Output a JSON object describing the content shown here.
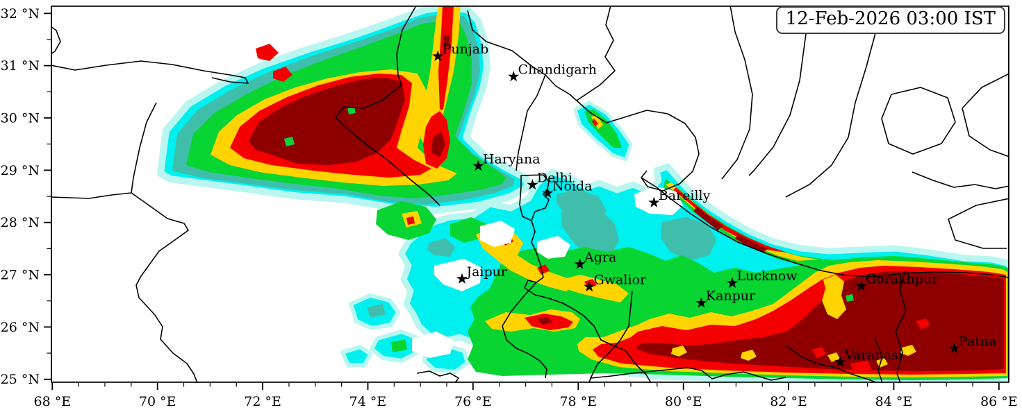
{
  "header": {
    "timestamp": "12-Feb-2026 03:00 IST"
  },
  "map": {
    "axes": {
      "lon_min": 67.97,
      "lon_max": 86.2,
      "lat_min": 24.93,
      "lat_max": 32.15,
      "minor_step": 0.5,
      "lon_major": [
        {
          "value": 68,
          "label": "68 °E"
        },
        {
          "value": 70,
          "label": "70 °E"
        },
        {
          "value": 72,
          "label": "72 °E"
        },
        {
          "value": 74,
          "label": "74 °E"
        },
        {
          "value": 76,
          "label": "76 °E"
        },
        {
          "value": 78,
          "label": "78 °E"
        },
        {
          "value": 80,
          "label": "80 °E"
        },
        {
          "value": 82,
          "label": "82 °E"
        },
        {
          "value": 84,
          "label": "84 °E"
        },
        {
          "value": 86,
          "label": "86 °E"
        }
      ],
      "lat_major": [
        {
          "value": 25,
          "label": "25 °N"
        },
        {
          "value": 26,
          "label": "26 °N"
        },
        {
          "value": 27,
          "label": "27 °N"
        },
        {
          "value": 28,
          "label": "28 °N"
        },
        {
          "value": 29,
          "label": "29 °N"
        },
        {
          "value": 30,
          "label": "30 °N"
        },
        {
          "value": 31,
          "label": "31 °N"
        },
        {
          "value": 32,
          "label": "32 °N"
        }
      ]
    },
    "cities": [
      {
        "name": "Punjab",
        "lon": 75.33,
        "lat": 31.18
      },
      {
        "name": "Chandigarh",
        "lon": 76.77,
        "lat": 30.79
      },
      {
        "name": "Haryana",
        "lon": 76.1,
        "lat": 29.08
      },
      {
        "name": "Delhi",
        "lon": 77.13,
        "lat": 28.72
      },
      {
        "name": "Noida",
        "lon": 77.42,
        "lat": 28.56
      },
      {
        "name": "Bareilly",
        "lon": 79.44,
        "lat": 28.38
      },
      {
        "name": "Agra",
        "lon": 78.03,
        "lat": 27.2
      },
      {
        "name": "Jaipur",
        "lon": 75.79,
        "lat": 26.92
      },
      {
        "name": "Gwalior",
        "lon": 78.21,
        "lat": 26.77
      },
      {
        "name": "Lucknow",
        "lon": 80.93,
        "lat": 26.84
      },
      {
        "name": "Kanpur",
        "lon": 80.34,
        "lat": 26.46
      },
      {
        "name": "Gorakhpur",
        "lon": 83.38,
        "lat": 26.78
      },
      {
        "name": "Patna",
        "lon": 85.15,
        "lat": 25.59
      },
      {
        "name": "Varanasi",
        "lon": 82.98,
        "lat": 25.33
      }
    ],
    "palette": {
      "white": "#ffffff",
      "palecyan": "#b9f6f0",
      "cyan": "#00efef",
      "teal": "#3fbfab",
      "green": "#08d432",
      "gold": "#ffd400",
      "red": "#f40000",
      "darkred": "#8e0000",
      "border": "#000000",
      "frame": "#000000",
      "marker": "#000000"
    },
    "levels_low_to_high": [
      "white",
      "palecyan",
      "cyan",
      "teal",
      "green",
      "gold",
      "red",
      "darkred"
    ]
  }
}
